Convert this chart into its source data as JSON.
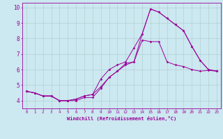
{
  "title": "",
  "xlabel": "Windchill (Refroidissement éolien,°C)",
  "ylabel": "",
  "bg_color": "#cce8f0",
  "line_color": "#990099",
  "grid_color": "#aacccc",
  "xlim": [
    -0.5,
    23.5
  ],
  "ylim": [
    3.5,
    10.3
  ],
  "yticks": [
    4,
    5,
    6,
    7,
    8,
    9,
    10
  ],
  "xticks": [
    0,
    1,
    2,
    3,
    4,
    5,
    6,
    7,
    8,
    9,
    10,
    11,
    12,
    13,
    14,
    15,
    16,
    17,
    18,
    19,
    20,
    21,
    22,
    23
  ],
  "line1_x": [
    0,
    1,
    2,
    3,
    4,
    5,
    6,
    7,
    8,
    9,
    10,
    11,
    12,
    13,
    14,
    15,
    16,
    17,
    18,
    19,
    20,
    21,
    22,
    23
  ],
  "line1_y": [
    4.6,
    4.5,
    4.3,
    4.3,
    4.0,
    4.0,
    4.0,
    4.2,
    4.2,
    4.8,
    5.5,
    5.9,
    6.3,
    6.5,
    7.9,
    7.8,
    7.8,
    6.5,
    6.3,
    6.2,
    6.0,
    5.9,
    5.95,
    5.9
  ],
  "line2_x": [
    0,
    1,
    2,
    3,
    4,
    5,
    6,
    7,
    8,
    9,
    10,
    11,
    12,
    13,
    14,
    15,
    16,
    17,
    18,
    19,
    20,
    21,
    22,
    23
  ],
  "line2_y": [
    4.6,
    4.5,
    4.3,
    4.3,
    4.0,
    4.0,
    4.1,
    4.3,
    4.4,
    4.9,
    5.5,
    5.9,
    6.4,
    6.5,
    8.3,
    9.9,
    9.7,
    9.3,
    8.9,
    8.5,
    7.5,
    6.6,
    6.0,
    5.9
  ],
  "line3_x": [
    0,
    1,
    2,
    3,
    4,
    5,
    6,
    7,
    8,
    9,
    10,
    11,
    12,
    13,
    14,
    15,
    16,
    17,
    18,
    19,
    20,
    21,
    22,
    23
  ],
  "line3_y": [
    4.6,
    4.5,
    4.3,
    4.3,
    4.0,
    4.0,
    4.1,
    4.3,
    4.4,
    5.4,
    6.0,
    6.3,
    6.5,
    7.4,
    8.3,
    9.9,
    9.7,
    9.3,
    8.9,
    8.5,
    7.5,
    6.6,
    6.0,
    5.9
  ],
  "xlabel_fontsize": 5.0,
  "tick_fontsize_x": 4.2,
  "tick_fontsize_y": 5.5
}
